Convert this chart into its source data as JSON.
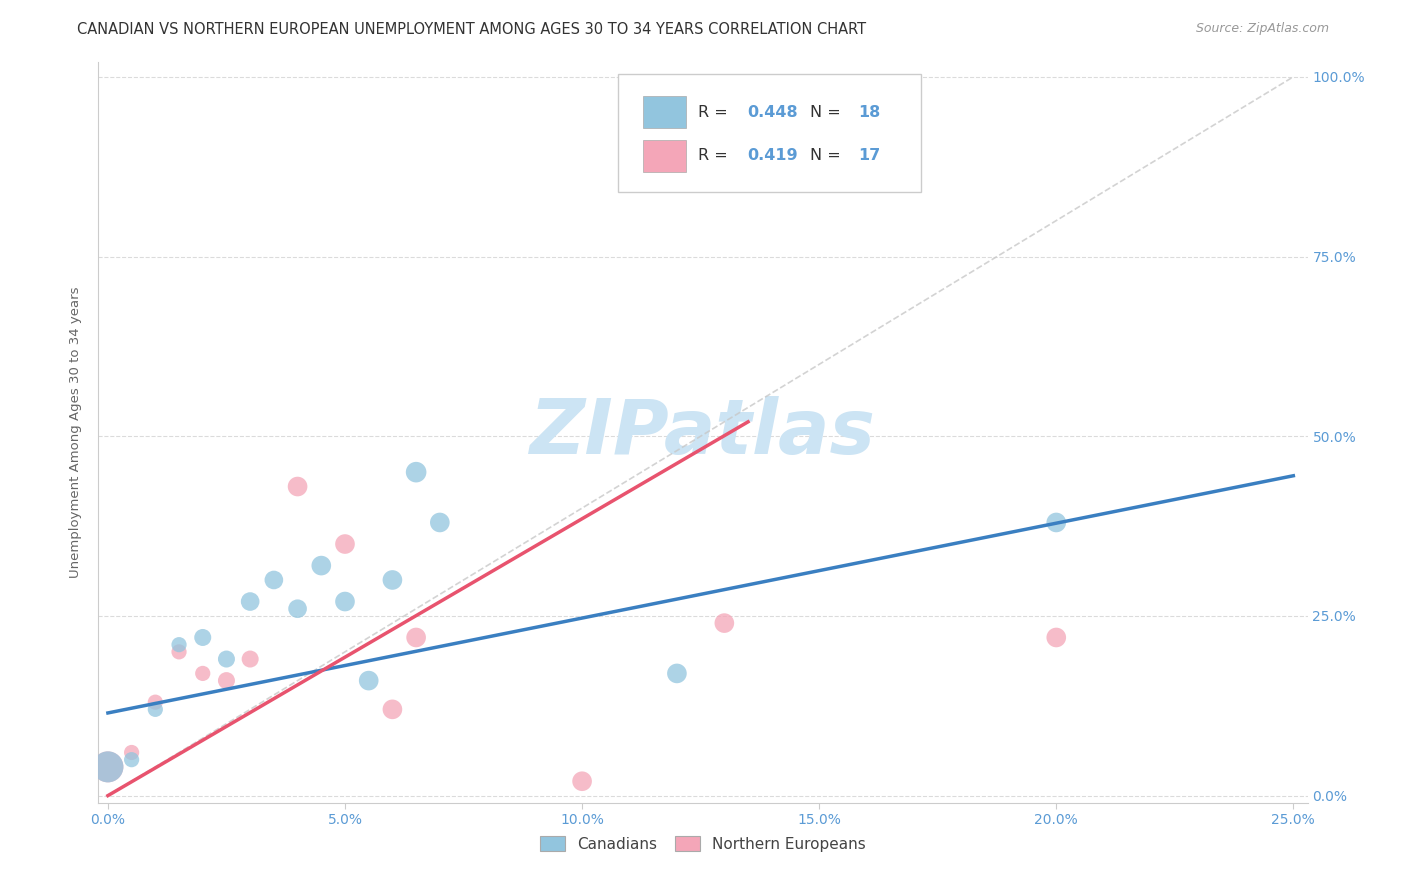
{
  "title": "CANADIAN VS NORTHERN EUROPEAN UNEMPLOYMENT AMONG AGES 30 TO 34 YEARS CORRELATION CHART",
  "source": "Source: ZipAtlas.com",
  "ylabel_label": "Unemployment Among Ages 30 to 34 years",
  "legend_canadians": "Canadians",
  "legend_northern_europeans": "Northern Europeans",
  "R_canadians": "0.448",
  "N_canadians": "18",
  "R_northern_europeans": "0.419",
  "N_northern_europeans": "17",
  "blue_color": "#92c5de",
  "pink_color": "#f4a6b8",
  "blue_line_color": "#3a7fc1",
  "pink_line_color": "#e8536e",
  "tick_color": "#5b9bd5",
  "canadians_x": [
    0.0,
    0.005,
    0.01,
    0.015,
    0.02,
    0.025,
    0.03,
    0.035,
    0.04,
    0.045,
    0.05,
    0.055,
    0.06,
    0.065,
    0.07,
    0.12,
    0.2
  ],
  "canadians_y": [
    0.04,
    0.05,
    0.12,
    0.21,
    0.22,
    0.19,
    0.27,
    0.3,
    0.26,
    0.32,
    0.27,
    0.16,
    0.3,
    0.45,
    0.38,
    0.17,
    0.38
  ],
  "canadians_sizes": [
    500,
    120,
    120,
    120,
    150,
    150,
    180,
    180,
    180,
    200,
    200,
    200,
    200,
    220,
    200,
    200,
    200
  ],
  "northern_europeans_x": [
    0.0,
    0.005,
    0.01,
    0.015,
    0.02,
    0.025,
    0.03,
    0.04,
    0.05,
    0.06,
    0.065,
    0.1,
    0.13,
    0.2
  ],
  "northern_europeans_y": [
    0.04,
    0.06,
    0.13,
    0.2,
    0.17,
    0.16,
    0.19,
    0.43,
    0.35,
    0.12,
    0.22,
    0.02,
    0.24,
    0.22
  ],
  "northern_europeans_sizes": [
    500,
    120,
    120,
    120,
    120,
    150,
    150,
    200,
    200,
    200,
    200,
    200,
    200,
    200
  ],
  "blue_line_x": [
    0.0,
    0.25
  ],
  "blue_line_y": [
    0.115,
    0.445
  ],
  "pink_line_x": [
    0.0,
    0.135
  ],
  "pink_line_y": [
    0.0,
    0.52
  ],
  "diag_line_x": [
    0.0,
    0.25
  ],
  "diag_line_y": [
    0.0,
    1.0
  ],
  "watermark": "ZIPatlas",
  "watermark_color": "#cce4f4",
  "background_color": "#ffffff",
  "grid_color": "#d8d8d8",
  "xlim": [
    -0.002,
    0.253
  ],
  "ylim": [
    -0.01,
    1.02
  ],
  "x_tick_vals": [
    0.0,
    0.05,
    0.1,
    0.15,
    0.2,
    0.25
  ],
  "x_tick_labels": [
    "0.0%",
    "5.0%",
    "10.0%",
    "15.0%",
    "20.0%",
    "25.0%"
  ],
  "y_tick_vals": [
    0.0,
    0.25,
    0.5,
    0.75,
    1.0
  ],
  "y_tick_labels": [
    "0.0%",
    "25.0%",
    "50.0%",
    "75.0%",
    "100.0%"
  ],
  "title_fontsize": 10.5,
  "source_fontsize": 9,
  "axis_label_fontsize": 9.5,
  "tick_fontsize": 10
}
